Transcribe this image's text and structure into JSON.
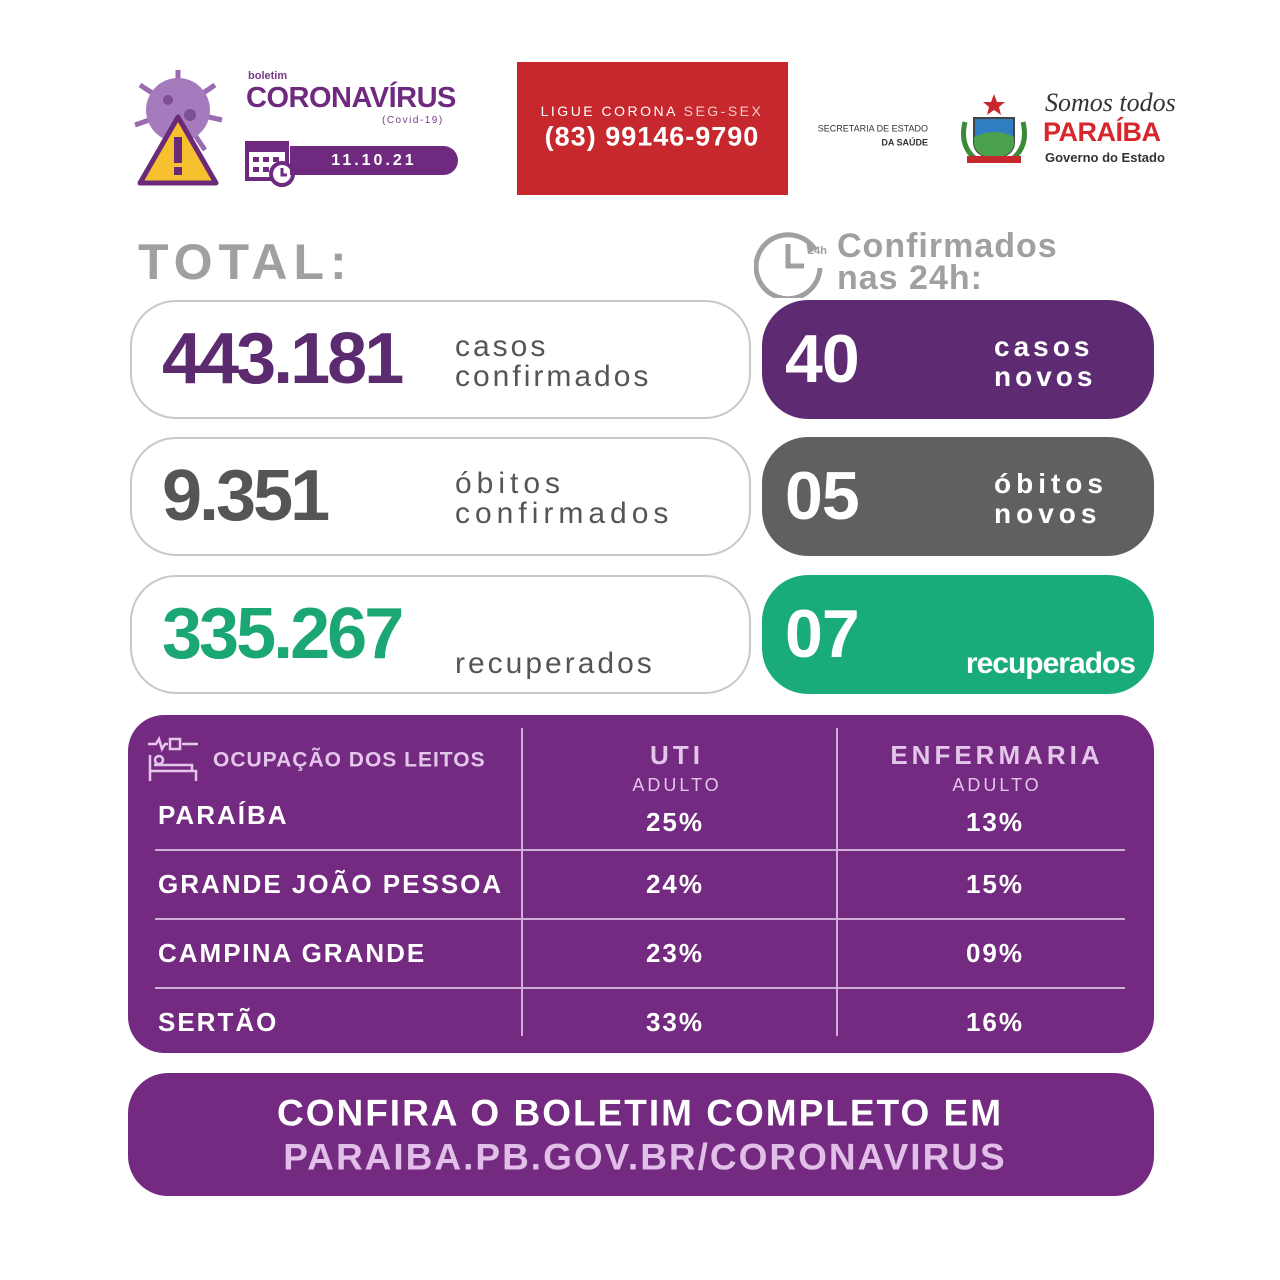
{
  "header": {
    "boletim": "boletim",
    "title": "CORONAVÍRUS",
    "subtitle": "(Covid-19)",
    "date": "11.10.21"
  },
  "hotline": {
    "label": "LIGUE CORONA",
    "days": "SEG-SEX",
    "phone": "(83) 99146-9790"
  },
  "secretaria": {
    "line1": "SECRETARIA DE ESTADO",
    "line2": "DA SAÚDE"
  },
  "government": {
    "slogan": "Somos todos",
    "name": "PARAÍBA",
    "subtitle": "Governo do Estado"
  },
  "totals": {
    "heading": "TOTAL:",
    "rows": [
      {
        "value": "443.181",
        "label": [
          "casos",
          "confirmados"
        ]
      },
      {
        "value": "9.351",
        "label": [
          "óbitos",
          "confirmados"
        ]
      },
      {
        "value": "335.267",
        "label": [
          "recuperados"
        ]
      }
    ]
  },
  "daily": {
    "heading": [
      "Confirmados",
      "nas 24h:"
    ],
    "icon_label": "24h",
    "rows": [
      {
        "value": "40",
        "label": [
          "casos",
          "novos"
        ]
      },
      {
        "value": "05",
        "label": [
          "óbitos",
          "novos"
        ]
      },
      {
        "value": "07",
        "label": [
          "recuperados"
        ]
      }
    ]
  },
  "beds": {
    "title": "OCUPAÇÃO DOS LEITOS",
    "columns": [
      {
        "name": "UTI",
        "sub": "ADULTO"
      },
      {
        "name": "ENFERMARIA",
        "sub": "ADULTO"
      }
    ],
    "rows": [
      {
        "region": "PARAÍBA",
        "values": [
          "25%",
          "13%"
        ]
      },
      {
        "region": "GRANDE JOÃO PESSOA",
        "values": [
          "24%",
          "15%"
        ]
      },
      {
        "region": "CAMPINA GRANDE",
        "values": [
          "23%",
          "09%"
        ]
      },
      {
        "region": "SERTÃO",
        "values": [
          "33%",
          "16%"
        ]
      }
    ]
  },
  "footer": {
    "line1": "CONFIRA O BOLETIM COMPLETO EM",
    "line2": "PARAIBA.PB.GOV.BR/CORONAVIRUS"
  }
}
